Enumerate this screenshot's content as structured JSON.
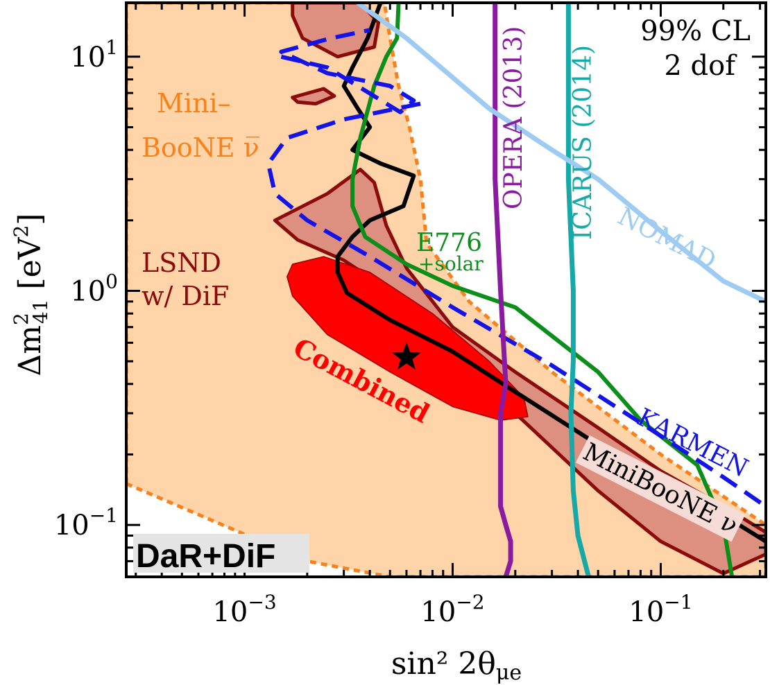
{
  "chart_data": {
    "type": "area",
    "title": "",
    "xlabel": "sin² 2θ",
    "xlabel_sub": "μe",
    "ylabel": "Δm",
    "ylabel_sup": "2",
    "ylabel_sub": "41",
    "ylabel_unit": "[eV",
    "ylabel_unit_sup": "2",
    "ylabel_unit_close": "]",
    "x_scale": "log",
    "y_scale": "log",
    "xlim": [
      0.00027,
      0.32
    ],
    "ylim": [
      0.06,
      17
    ],
    "x_ticks": [
      {
        "value": 0.001,
        "base": "10",
        "exp": "−3"
      },
      {
        "value": 0.01,
        "base": "10",
        "exp": "−2"
      },
      {
        "value": 0.1,
        "base": "10",
        "exp": "−1"
      }
    ],
    "y_ticks": [
      {
        "value": 0.1,
        "base": "10",
        "exp": "−1"
      },
      {
        "value": 1,
        "base": "10",
        "exp": "0"
      },
      {
        "value": 10,
        "base": "10",
        "exp": "1"
      }
    ],
    "annotations": {
      "cl": "99% CL",
      "dof": "2 dof",
      "panel": "DaR+DiF",
      "miniboone_antinu_1": "Mini–",
      "miniboone_antinu_2": "BooNE ν̅",
      "lsnd_1": "LSND",
      "lsnd_2": "w/ DiF",
      "combined": "Combined",
      "e776_1": "E776",
      "e776_2": "+solar",
      "opera": "OPERA (2013)",
      "icarus": "ICARUS (2014)",
      "nomad": "NOMAD",
      "karmen": "KARMEN",
      "miniboone_nu": "MiniBooNE ν"
    },
    "colors": {
      "miniboone_antinu": "#fed4a8",
      "miniboone_antinu_edge": "#f7821c",
      "lsnd": "#dd8f80",
      "lsnd_edge": "#8b0a0a",
      "combined": "#ff0000",
      "miniboone_nu": "#000000",
      "e776": "#0b8f1a",
      "karmen": "#1414e6",
      "opera": "#8a1ba0",
      "icarus": "#17a8a8",
      "nomad": "#9ecbf2"
    },
    "series": [
      {
        "name": "MiniBooNE ν̅",
        "kind": "region",
        "points": [
          [
            0.00027,
            0.15
          ],
          [
            0.002,
            0.07
          ],
          [
            0.005,
            0.06
          ],
          [
            0.32,
            0.06
          ],
          [
            0.32,
            0.1
          ],
          [
            0.1,
            0.2
          ],
          [
            0.03,
            0.45
          ],
          [
            0.012,
            0.9
          ],
          [
            0.0075,
            1.6
          ],
          [
            0.007,
            3.0
          ],
          [
            0.0062,
            5.0
          ],
          [
            0.0055,
            7.5
          ],
          [
            0.005,
            12
          ],
          [
            0.0047,
            17
          ],
          [
            0.00027,
            17
          ]
        ]
      },
      {
        "name": "LSND w/ DiF",
        "kind": "region",
        "points": [
          [
            0.0014,
            2.0
          ],
          [
            0.0025,
            2.6
          ],
          [
            0.0036,
            3.3
          ],
          [
            0.0042,
            2.9
          ],
          [
            0.0048,
            1.9
          ],
          [
            0.006,
            1.25
          ],
          [
            0.01,
            0.7
          ],
          [
            0.02,
            0.45
          ],
          [
            0.05,
            0.26
          ],
          [
            0.1,
            0.17
          ],
          [
            0.2,
            0.12
          ],
          [
            0.32,
            0.093
          ],
          [
            0.32,
            0.075
          ],
          [
            0.2,
            0.062
          ],
          [
            0.1,
            0.085
          ],
          [
            0.05,
            0.14
          ],
          [
            0.02,
            0.3
          ],
          [
            0.01,
            0.53
          ],
          [
            0.005,
            1.0
          ],
          [
            0.003,
            1.35
          ],
          [
            0.0018,
            1.65
          ]
        ]
      },
      {
        "name": "LSND w/ DiF (upper island)",
        "kind": "region",
        "points": [
          [
            0.0017,
            17
          ],
          [
            0.0036,
            17
          ],
          [
            0.0044,
            14
          ],
          [
            0.0042,
            11
          ],
          [
            0.0028,
            10
          ],
          [
            0.0019,
            12
          ],
          [
            0.0017,
            15
          ]
        ]
      },
      {
        "name": "LSND w/ DiF (small island)",
        "kind": "region",
        "points": [
          [
            0.0017,
            6.7
          ],
          [
            0.0024,
            7.3
          ],
          [
            0.0027,
            6.8
          ],
          [
            0.0022,
            6.3
          ],
          [
            0.0018,
            6.4
          ]
        ]
      },
      {
        "name": "Combined",
        "kind": "region",
        "points": [
          [
            0.0017,
            1.3
          ],
          [
            0.0024,
            1.4
          ],
          [
            0.004,
            1.2
          ],
          [
            0.008,
            0.8
          ],
          [
            0.015,
            0.5
          ],
          [
            0.022,
            0.35
          ],
          [
            0.023,
            0.29
          ],
          [
            0.017,
            0.28
          ],
          [
            0.01,
            0.32
          ],
          [
            0.005,
            0.45
          ],
          [
            0.0025,
            0.65
          ],
          [
            0.0017,
            0.95
          ],
          [
            0.0016,
            1.15
          ]
        ]
      },
      {
        "name": "MiniBooNE ν",
        "kind": "line",
        "points": [
          [
            0.0045,
            17
          ],
          [
            0.0039,
            12
          ],
          [
            0.0033,
            9
          ],
          [
            0.003,
            7.5
          ],
          [
            0.0035,
            6
          ],
          [
            0.004,
            5
          ],
          [
            0.0033,
            4
          ],
          [
            0.0045,
            3.5
          ],
          [
            0.0065,
            3.1
          ],
          [
            0.0058,
            2.3
          ],
          [
            0.004,
            2.0
          ],
          [
            0.0033,
            1.7
          ],
          [
            0.0028,
            1.4
          ],
          [
            0.0028,
            1.2
          ],
          [
            0.0031,
            0.98
          ],
          [
            0.005,
            0.75
          ],
          [
            0.01,
            0.55
          ],
          [
            0.02,
            0.37
          ],
          [
            0.05,
            0.22
          ],
          [
            0.1,
            0.15
          ],
          [
            0.2,
            0.11
          ],
          [
            0.32,
            0.085
          ]
        ]
      },
      {
        "name": "E776 +solar",
        "kind": "line",
        "points": [
          [
            0.0055,
            17
          ],
          [
            0.0054,
            12
          ],
          [
            0.0048,
            10
          ],
          [
            0.0042,
            7.5
          ],
          [
            0.0036,
            4.5
          ],
          [
            0.0033,
            3.0
          ],
          [
            0.0033,
            2.3
          ],
          [
            0.0038,
            1.7
          ],
          [
            0.006,
            1.3
          ],
          [
            0.01,
            1.05
          ],
          [
            0.02,
            0.85
          ],
          [
            0.05,
            0.45
          ],
          [
            0.08,
            0.28
          ],
          [
            0.15,
            0.18
          ],
          [
            0.2,
            0.1
          ],
          [
            0.22,
            0.06
          ]
        ]
      },
      {
        "name": "KARMEN",
        "kind": "line",
        "points": [
          [
            0.0015,
            10
          ],
          [
            0.0025,
            9
          ],
          [
            0.0056,
            5.8
          ],
          [
            0.0065,
            6.5
          ],
          [
            0.005,
            7.5
          ],
          [
            0.0025,
            8.5
          ],
          [
            0.0015,
            10.5
          ],
          [
            0.0026,
            12
          ],
          [
            0.004,
            13
          ]
        ]
      },
      {
        "name": "KARMEN",
        "kind": "line",
        "points": [
          [
            0.007,
            6.3
          ],
          [
            0.003,
            5.4
          ],
          [
            0.0016,
            4.5
          ],
          [
            0.0013,
            3.5
          ],
          [
            0.0014,
            2.6
          ],
          [
            0.002,
            2.0
          ],
          [
            0.004,
            1.4
          ],
          [
            0.01,
            0.85
          ],
          [
            0.03,
            0.48
          ],
          [
            0.1,
            0.24
          ],
          [
            0.2,
            0.16
          ],
          [
            0.32,
            0.12
          ]
        ]
      },
      {
        "name": "OPERA (2013)",
        "kind": "line",
        "points": [
          [
            0.016,
            17
          ],
          [
            0.016,
            3
          ],
          [
            0.017,
            1.0
          ],
          [
            0.018,
            0.4
          ],
          [
            0.017,
            0.3
          ],
          [
            0.017,
            0.12
          ],
          [
            0.018,
            0.1
          ],
          [
            0.019,
            0.085
          ],
          [
            0.019,
            0.07
          ],
          [
            0.018,
            0.06
          ]
        ]
      },
      {
        "name": "ICARUS (2014)",
        "kind": "line",
        "points": [
          [
            0.036,
            17
          ],
          [
            0.036,
            3
          ],
          [
            0.038,
            1.0
          ],
          [
            0.038,
            0.5
          ],
          [
            0.037,
            0.3
          ],
          [
            0.038,
            0.14
          ],
          [
            0.04,
            0.09
          ],
          [
            0.045,
            0.06
          ]
        ]
      },
      {
        "name": "NOMAD",
        "kind": "line",
        "points": [
          [
            0.0035,
            17
          ],
          [
            0.006,
            12
          ],
          [
            0.015,
            6
          ],
          [
            0.03,
            4
          ],
          [
            0.05,
            3
          ],
          [
            0.1,
            1.8
          ],
          [
            0.2,
            1.1
          ],
          [
            0.32,
            0.9
          ]
        ]
      }
    ],
    "best_fit": {
      "x": 0.006,
      "y": 0.52
    },
    "grid": false,
    "legend": "none"
  }
}
